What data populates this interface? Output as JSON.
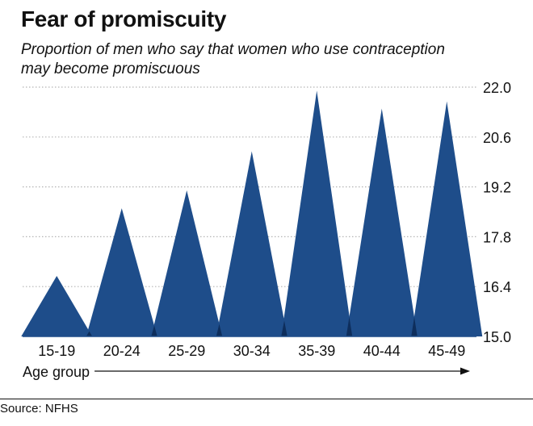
{
  "chart_data": {
    "type": "area",
    "title": "Fear of promiscuity",
    "subtitle": "Proportion of men who say that women who use contraception may become promiscuous",
    "categories": [
      "15-19",
      "20-24",
      "25-29",
      "30-34",
      "35-39",
      "40-44",
      "45-49"
    ],
    "values": [
      16.7,
      18.6,
      19.1,
      20.2,
      21.9,
      21.4,
      21.6
    ],
    "xlabel": "Age group",
    "ylabel": "",
    "ylim": [
      15.0,
      22.0
    ],
    "yticks": [
      "22.0",
      "20.6",
      "19.2",
      "17.8",
      "16.4",
      "15.0"
    ],
    "grid": true,
    "legend": "none",
    "colors": {
      "peak": "#1e4d8a",
      "overlap": "#0e2e5c",
      "text": "#111111",
      "grid": "#b5b5b5"
    }
  },
  "source": "Source: NFHS"
}
